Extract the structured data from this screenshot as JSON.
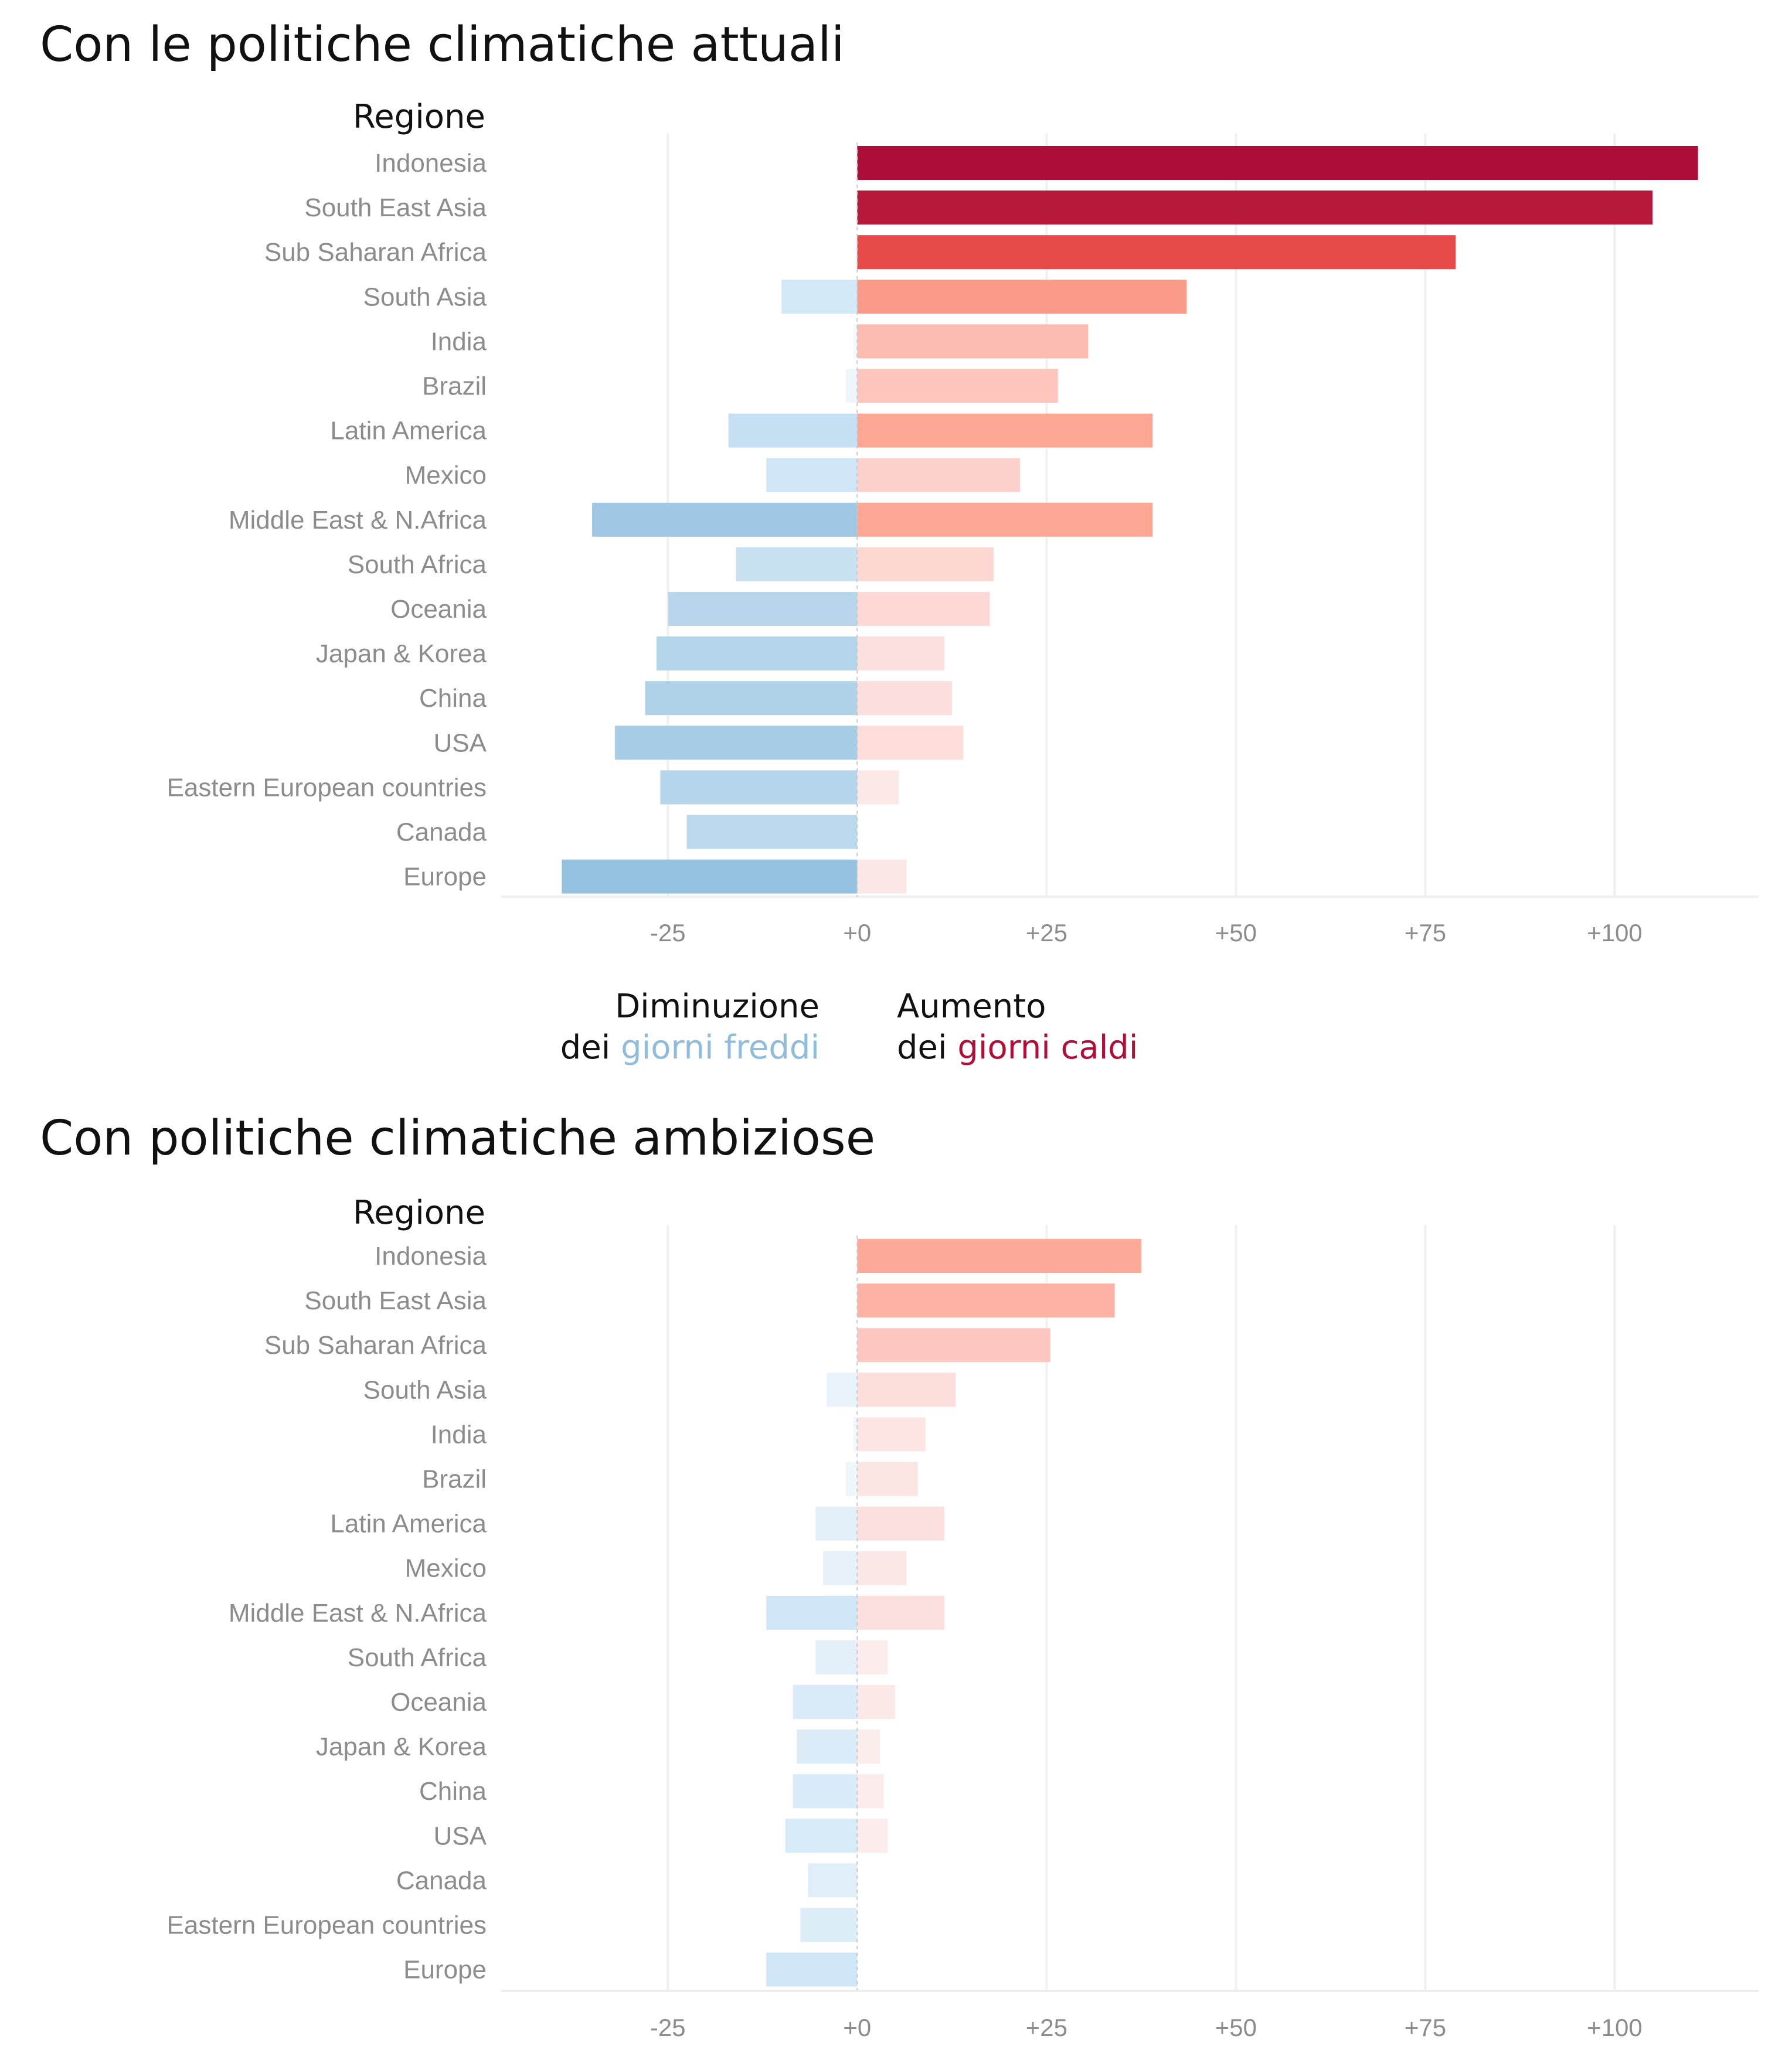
{
  "legend": {
    "decrease_line1": "Diminuzione",
    "decrease_line2_prefix": "dei ",
    "decrease_line2_colored": "giorni freddi",
    "increase_line1": "Aumento",
    "increase_line2_prefix": "dei ",
    "increase_line2_colored": "giorni caldi",
    "cold_color": "#8fbcdc",
    "hot_color": "#b20d36"
  },
  "chart_data": [
    {
      "type": "bar",
      "orientation": "horizontal",
      "title": "Con le politiche climatiche attuali",
      "ylabel": "Regione",
      "xlim": [
        -47,
        119
      ],
      "xticks": [
        -25,
        0,
        25,
        50,
        75,
        100
      ],
      "xtick_labels": [
        "-25",
        "+0",
        "+25",
        "+50",
        "+75",
        "+100"
      ],
      "categories": [
        "Indonesia",
        "South East Asia",
        "Sub Saharan Africa",
        "South Asia",
        "India",
        "Brazil",
        "Latin America",
        "Mexico",
        "Middle East & N.Africa",
        "South Africa",
        "Oceania",
        "Japan & Korea",
        "China",
        "USA",
        "Eastern European countries",
        "Canada",
        "Europe"
      ],
      "series": [
        {
          "values": [
            0,
            0,
            0,
            -10,
            -0.5,
            -1.5,
            -17,
            -12,
            -35,
            -16,
            -25,
            -26.5,
            -28,
            -32,
            -26,
            -22.5,
            -39
          ]
        },
        {
          "values": [
            111,
            105,
            79,
            43.5,
            30.5,
            26.5,
            39,
            21.5,
            39,
            18,
            17.5,
            11.5,
            12.5,
            14,
            5.5,
            0,
            6.5
          ]
        }
      ]
    },
    {
      "type": "bar",
      "orientation": "horizontal",
      "title": "Con politiche climatiche ambiziose",
      "ylabel": "Regione",
      "xlim": [
        -47,
        119
      ],
      "xticks": [
        -25,
        0,
        25,
        50,
        75,
        100
      ],
      "xtick_labels": [
        "-25",
        "+0",
        "+25",
        "+50",
        "+75",
        "+100"
      ],
      "categories": [
        "Indonesia",
        "South East Asia",
        "Sub Saharan Africa",
        "South Asia",
        "India",
        "Brazil",
        "Latin America",
        "Mexico",
        "Middle East & N.Africa",
        "South Africa",
        "Oceania",
        "Japan & Korea",
        "China",
        "USA",
        "Canada",
        "Eastern European countries",
        "Europe"
      ],
      "series": [
        {
          "values": [
            0,
            0,
            0,
            -4,
            -0.5,
            -1.5,
            -5.5,
            -4.5,
            -12,
            -5.5,
            -8.5,
            -8,
            -8.5,
            -9.5,
            -6.5,
            -7.5,
            -12
          ]
        },
        {
          "values": [
            37.5,
            34,
            25.5,
            13,
            9,
            8,
            11.5,
            6.5,
            11.5,
            4,
            5,
            3,
            3.5,
            4,
            0,
            0,
            0
          ]
        }
      ]
    }
  ]
}
